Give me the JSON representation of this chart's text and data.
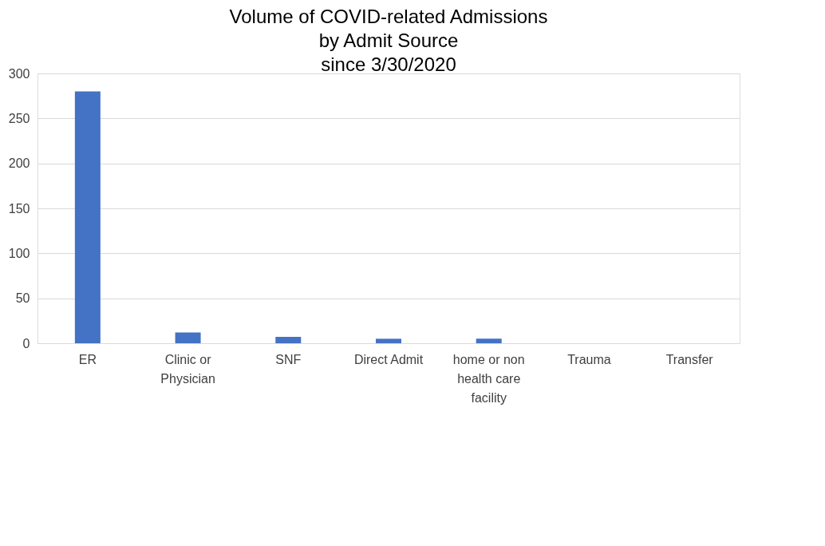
{
  "chart_data": {
    "type": "bar",
    "title": "Volume of COVID-related Admissions\nby Admit Source\nsince 3/30/2020",
    "categories": [
      "ER",
      "Clinic or Physician",
      "SNF",
      "Direct Admit",
      "home or non health care facility",
      "Trauma",
      "Transfer"
    ],
    "values": [
      280,
      12,
      7,
      5,
      5,
      0,
      0
    ],
    "color": "#4472c4",
    "ylim": [
      0,
      300
    ],
    "yticks": [
      0,
      50,
      100,
      150,
      200,
      250,
      300
    ],
    "grid": "y"
  }
}
